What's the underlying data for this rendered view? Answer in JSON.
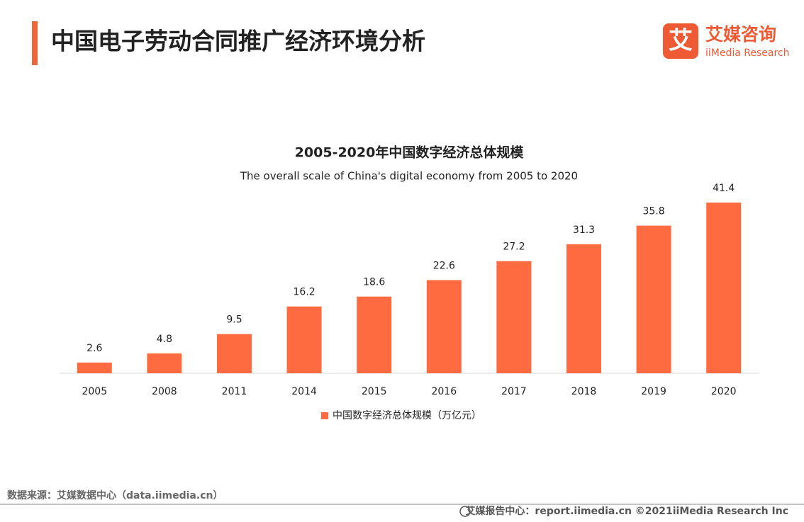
{
  "header": {
    "title": "中国电子劳动合同推广经济环境分析",
    "logo_mark": "艾",
    "logo_name": "艾媒咨询",
    "logo_sub": "iiMedia Research"
  },
  "chart_data": {
    "type": "bar",
    "title": "2005-2020年中国数字经济总体规模",
    "subtitle": "The overall scale of China's digital economy from 2005 to 2020",
    "categories": [
      "2005",
      "2008",
      "2011",
      "2014",
      "2015",
      "2016",
      "2017",
      "2018",
      "2019",
      "2020"
    ],
    "series": [
      {
        "name": "中国数字经济总体规模（万亿元）",
        "color": "#ff6b40",
        "values": [
          2.6,
          4.8,
          9.5,
          16.2,
          18.6,
          22.6,
          27.2,
          31.3,
          35.8,
          41.4
        ]
      }
    ]
  },
  "footer": {
    "source": "数据来源：艾媒数据中心（data.iimedia.cn）",
    "credit": "艾媒报告中心：report.iimedia.cn  ©2021iiMedia Research  Inc"
  }
}
